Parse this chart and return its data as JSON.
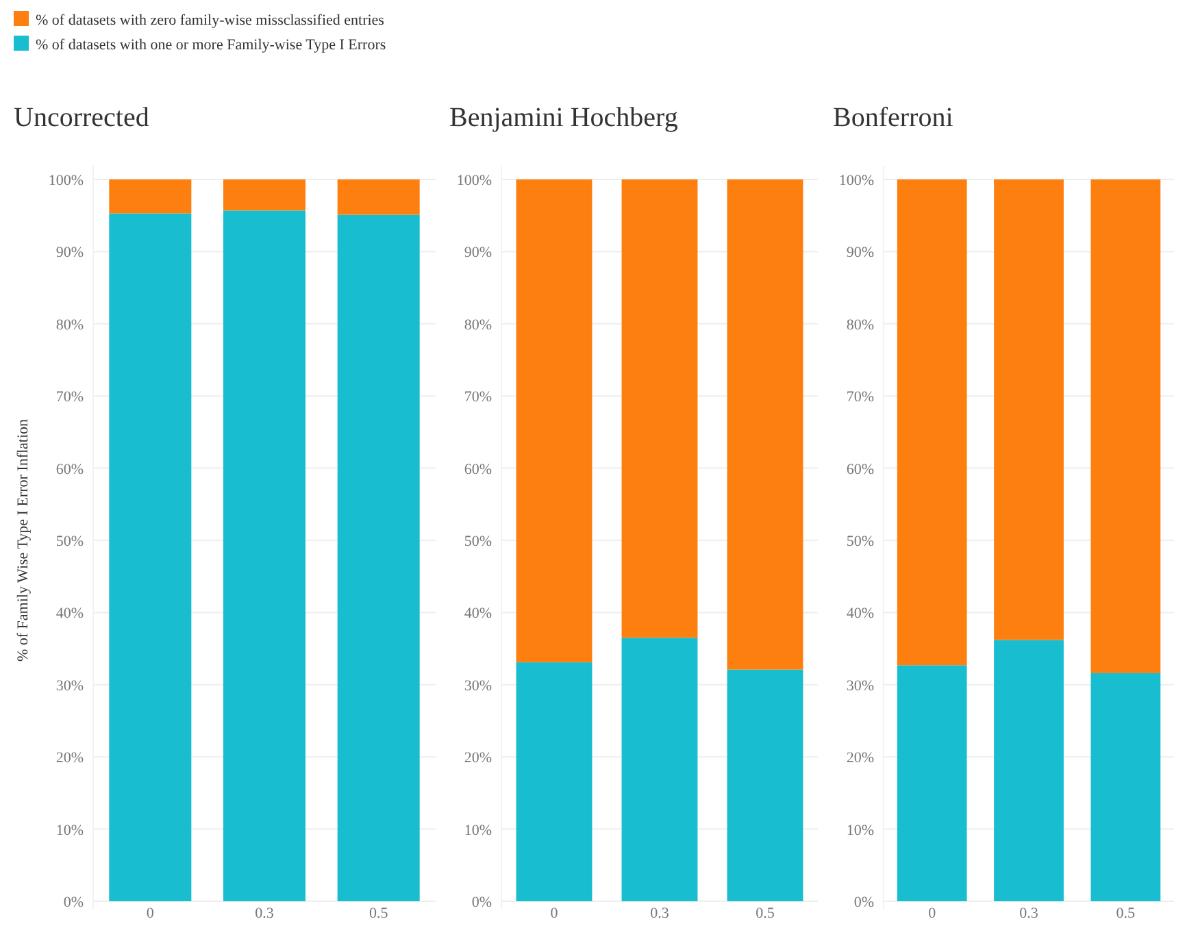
{
  "chart_data": [
    {
      "type": "bar",
      "title": "Uncorrected",
      "ylabel": "% of Family Wise Type I Error Inflation",
      "categories": [
        "0",
        "0.3",
        "0.5"
      ],
      "stacked": true,
      "grid": "y",
      "legend": "top left",
      "ylim": [
        0,
        100
      ],
      "yticks": [
        {
          "value": 0,
          "label": "0%"
        },
        {
          "value": 10,
          "label": "10%"
        },
        {
          "value": 20,
          "label": "20%"
        },
        {
          "value": 30,
          "label": "30%"
        },
        {
          "value": 40,
          "label": "40%"
        },
        {
          "value": 50,
          "label": "50%"
        },
        {
          "value": 60,
          "label": "60%"
        },
        {
          "value": 70,
          "label": "70%"
        },
        {
          "value": 80,
          "label": "80%"
        },
        {
          "value": 90,
          "label": "90%"
        },
        {
          "value": 100,
          "label": "100%"
        }
      ],
      "series": [
        {
          "name": "% of datasets with one or more Family-wise Type I Errors",
          "color": "#19bdd0",
          "values": [
            95.3,
            95.7,
            95.1
          ]
        },
        {
          "name": "% of datasets with zero family-wise missclassified entries",
          "color": "#fd7f0f",
          "values": [
            4.7,
            4.3,
            4.9
          ]
        }
      ]
    },
    {
      "type": "bar",
      "title": "Benjamini Hochberg",
      "categories": [
        "0",
        "0.3",
        "0.5"
      ],
      "stacked": true,
      "grid": "y",
      "ylim": [
        0,
        100
      ],
      "yticks": [
        {
          "value": 0,
          "label": "0%"
        },
        {
          "value": 10,
          "label": "10%"
        },
        {
          "value": 20,
          "label": "20%"
        },
        {
          "value": 30,
          "label": "30%"
        },
        {
          "value": 40,
          "label": "40%"
        },
        {
          "value": 50,
          "label": "50%"
        },
        {
          "value": 60,
          "label": "60%"
        },
        {
          "value": 70,
          "label": "70%"
        },
        {
          "value": 80,
          "label": "80%"
        },
        {
          "value": 90,
          "label": "90%"
        },
        {
          "value": 100,
          "label": "100%"
        }
      ],
      "series": [
        {
          "color": "#19bdd0",
          "values": [
            33.1,
            36.5,
            32.1
          ]
        },
        {
          "color": "#fd7f0f",
          "values": [
            66.9,
            63.5,
            67.9
          ]
        }
      ]
    },
    {
      "type": "bar",
      "title": "Bonferroni",
      "categories": [
        "0",
        "0.3",
        "0.5"
      ],
      "stacked": true,
      "grid": "y",
      "ylim": [
        0,
        100
      ],
      "yticks": [
        {
          "value": 0,
          "label": "0%"
        },
        {
          "value": 10,
          "label": "10%"
        },
        {
          "value": 20,
          "label": "20%"
        },
        {
          "value": 30,
          "label": "30%"
        },
        {
          "value": 40,
          "label": "40%"
        },
        {
          "value": 50,
          "label": "50%"
        },
        {
          "value": 60,
          "label": "60%"
        },
        {
          "value": 70,
          "label": "70%"
        },
        {
          "value": 80,
          "label": "80%"
        },
        {
          "value": 90,
          "label": "90%"
        },
        {
          "value": 100,
          "label": "100%"
        }
      ],
      "series": [
        {
          "color": "#19bdd0",
          "values": [
            32.7,
            36.2,
            31.6
          ]
        },
        {
          "color": "#fd7f0f",
          "values": [
            67.3,
            63.8,
            68.4
          ]
        }
      ]
    }
  ]
}
